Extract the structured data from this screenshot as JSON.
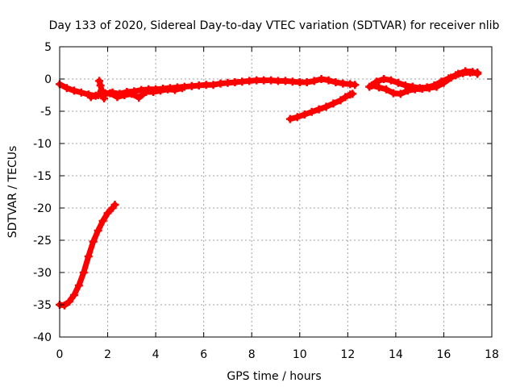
{
  "chart_data": {
    "type": "scatter",
    "title": "Day 133 of 2020, Sidereal Day-to-day VTEC variation (SDTVAR) for receiver nlib",
    "xlabel": "GPS time / hours",
    "ylabel": "SDTVAR / TECUs",
    "xlim": [
      0,
      18
    ],
    "ylim": [
      -40,
      5
    ],
    "xticks": [
      0,
      2,
      4,
      6,
      8,
      10,
      12,
      14,
      16,
      18
    ],
    "yticks": [
      5,
      0,
      -5,
      -10,
      -15,
      -20,
      -25,
      -30,
      -35,
      -40
    ],
    "grid": true,
    "series_color": "#ff0000",
    "grid_color": "#a0a0a0",
    "series": [
      {
        "name": "early-descending-arc",
        "x": [
          0.0,
          0.2,
          0.4,
          0.6,
          0.8,
          1.0,
          1.2,
          1.4,
          1.6,
          1.8,
          2.0,
          2.2,
          2.3
        ],
        "y": [
          -35.0,
          -35.1,
          -34.5,
          -33.5,
          -32.0,
          -30.0,
          -27.5,
          -25.2,
          -23.5,
          -22.0,
          -20.8,
          -20.0,
          -19.5
        ]
      },
      {
        "name": "main-trace-a",
        "x": [
          0.0,
          0.3,
          0.6,
          0.9,
          1.2,
          1.5,
          1.8,
          2.1,
          2.4,
          2.7,
          3.0,
          3.3,
          3.6,
          3.9,
          4.2,
          4.5,
          4.8,
          5.1
        ],
        "y": [
          -0.8,
          -1.4,
          -1.8,
          -2.1,
          -2.4,
          -2.6,
          -2.4,
          -2.2,
          -2.8,
          -2.5,
          -2.3,
          -2.9,
          -2.0,
          -2.0,
          -1.8,
          -1.6,
          -1.7,
          -1.4
        ]
      },
      {
        "name": "main-trace-b",
        "x": [
          1.3,
          1.6,
          1.9,
          2.2,
          2.5,
          2.8,
          3.1,
          3.4,
          3.7,
          4.0,
          4.3,
          4.6,
          4.9,
          5.2,
          5.5,
          5.8,
          6.1,
          6.4,
          6.7,
          7.0,
          7.3,
          7.6,
          7.9,
          8.2,
          8.5,
          8.8,
          9.1,
          9.4,
          9.7,
          10.0,
          10.3,
          10.6,
          10.9,
          11.2,
          11.5,
          11.8,
          12.1,
          12.3
        ],
        "y": [
          -2.8,
          -2.5,
          -2.2,
          -2.1,
          -2.3,
          -2.0,
          -1.9,
          -1.7,
          -1.6,
          -1.6,
          -1.5,
          -1.4,
          -1.3,
          -1.2,
          -1.1,
          -1.0,
          -0.9,
          -0.9,
          -0.7,
          -0.6,
          -0.5,
          -0.4,
          -0.3,
          -0.2,
          -0.2,
          -0.2,
          -0.3,
          -0.3,
          -0.4,
          -0.5,
          -0.5,
          -0.3,
          0.0,
          -0.2,
          -0.5,
          -0.7,
          -0.8,
          -0.9
        ]
      },
      {
        "name": "spike-near-1.7h",
        "x": [
          1.65,
          1.7,
          1.75,
          1.8,
          1.85
        ],
        "y": [
          -0.3,
          -1.0,
          -1.8,
          -2.5,
          -3.0
        ]
      },
      {
        "name": "late-rising-arc",
        "x": [
          9.6,
          9.9,
          10.2,
          10.5,
          10.8,
          11.1,
          11.4,
          11.7,
          11.9,
          12.1,
          12.2
        ],
        "y": [
          -6.2,
          -5.9,
          -5.5,
          -5.1,
          -4.7,
          -4.3,
          -3.8,
          -3.3,
          -2.8,
          -2.4,
          -2.3
        ]
      },
      {
        "name": "end-trace-a",
        "x": [
          12.9,
          13.2,
          13.5,
          13.8,
          14.1,
          14.4,
          14.7,
          15.0,
          15.3,
          15.6,
          15.9,
          16.2,
          16.5,
          16.8,
          17.1,
          17.4
        ],
        "y": [
          -1.2,
          -0.4,
          0.0,
          -0.2,
          -0.6,
          -1.0,
          -1.2,
          -1.4,
          -1.3,
          -1.0,
          -0.4,
          0.1,
          0.6,
          0.9,
          1.0,
          1.0
        ]
      },
      {
        "name": "end-trace-b",
        "x": [
          13.0,
          13.3,
          13.6,
          13.9,
          14.2,
          14.5,
          14.8,
          15.1,
          15.4,
          15.7,
          16.0,
          16.3,
          16.6,
          16.9,
          17.2,
          17.4
        ],
        "y": [
          -1.0,
          -1.3,
          -1.6,
          -2.2,
          -2.3,
          -1.8,
          -1.6,
          -1.5,
          -1.4,
          -1.2,
          -0.6,
          0.2,
          0.8,
          1.2,
          1.1,
          0.8
        ]
      }
    ]
  }
}
